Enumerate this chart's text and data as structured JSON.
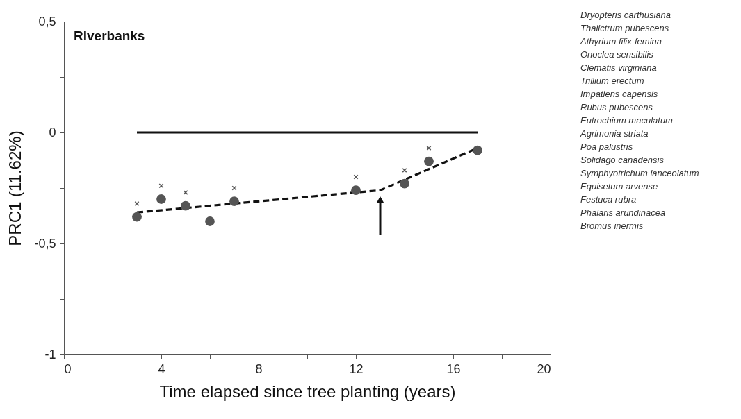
{
  "chart_data": {
    "type": "scatter",
    "title": "Riverbanks",
    "xlabel": "Time elapsed since tree planting (years)",
    "ylabel": "PRC1 (11.62%)",
    "xlim": [
      0,
      20
    ],
    "xticks": [
      0,
      {
        "value": 2,
        "label": null
      },
      4,
      {
        "value": 6,
        "label": null
      },
      8,
      {
        "value": 10,
        "label": null
      },
      12,
      {
        "value": 14,
        "label": null
      },
      16,
      {
        "value": 18,
        "label": null
      },
      20
    ],
    "ylim": [
      -1,
      0.5
    ],
    "yticks": [
      {
        "value": -1,
        "label": "-1"
      },
      {
        "value": -0.75,
        "label": null
      },
      {
        "value": -0.5,
        "label": "-0,5"
      },
      {
        "value": -0.25,
        "label": null
      },
      0,
      {
        "value": 0.25,
        "label": null
      },
      {
        "value": 0.5,
        "label": "0,5"
      }
    ],
    "grid": false,
    "series": [
      {
        "type": "line",
        "color": "#111111",
        "line_style": "solid",
        "marker": "none",
        "x": [
          3,
          17
        ],
        "values": [
          0,
          0
        ]
      },
      {
        "type": "line",
        "color": "#111111",
        "line_style": "dashed",
        "marker": "none",
        "x": [
          3,
          13,
          17
        ],
        "values": [
          -0.36,
          -0.26,
          -0.07
        ]
      },
      {
        "color": "#555555",
        "marker": "circle",
        "x": [
          3,
          4,
          5,
          6,
          7,
          12,
          14,
          15,
          17
        ],
        "values": [
          -0.38,
          -0.3,
          -0.33,
          -0.4,
          -0.31,
          -0.26,
          -0.23,
          -0.13,
          -0.08
        ]
      },
      {
        "color": "#555555",
        "marker": "cross",
        "x": [
          3,
          4,
          5,
          7,
          12,
          14,
          15
        ],
        "values": [
          -0.32,
          -0.24,
          -0.27,
          -0.25,
          -0.2,
          -0.17,
          -0.07
        ]
      }
    ],
    "annotations": [
      "Dryopteris carthusiana",
      "Thalictrum pubescens",
      "Athyrium filix-femina",
      "Onoclea sensibilis",
      "Clematis virginiana",
      "Trillium erectum",
      "Impatiens capensis",
      "Rubus pubescens",
      "Eutrochium maculatum",
      "Agrimonia striata",
      "Poa palustris",
      "Solidago canadensis",
      "Symphyotrichum lanceolatum",
      "Equisetum arvense",
      "Festuca rubra",
      "Phalaris arundinacea",
      "Bromus inermis"
    ]
  }
}
